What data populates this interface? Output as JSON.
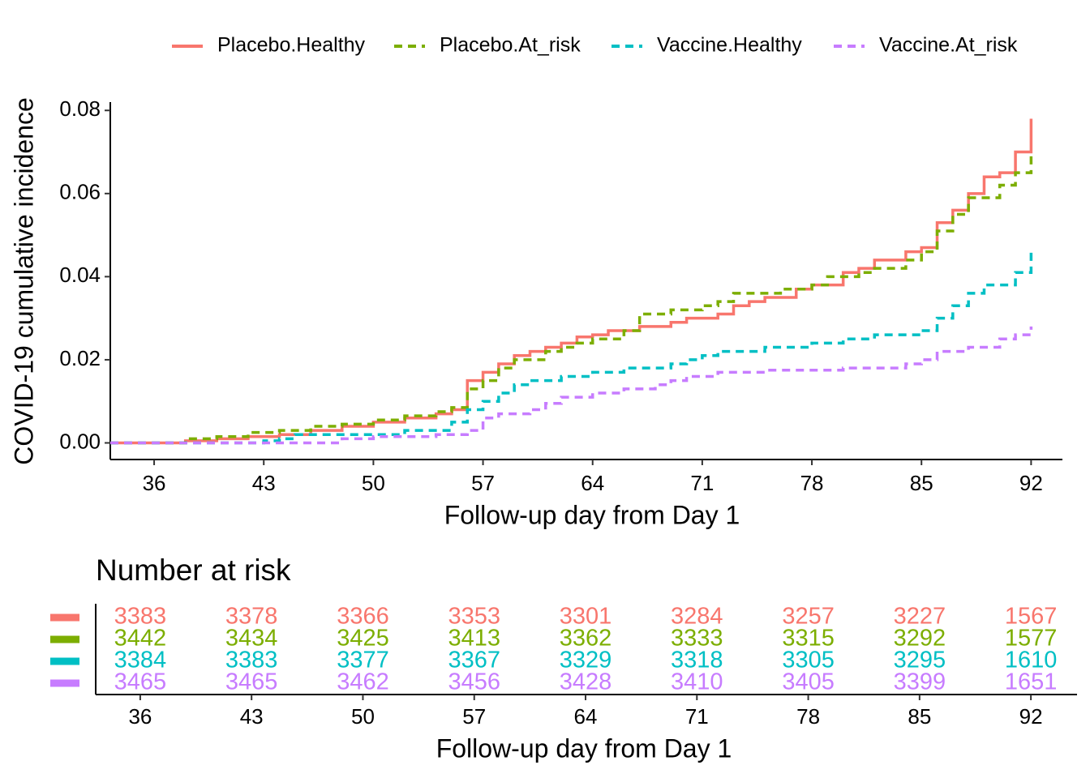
{
  "chart_data": [
    {
      "type": "step",
      "ylabel": "COVID-19 cumulative incidence",
      "xlabel": "Follow-up day from Day 1",
      "legend": "top",
      "xlim": [
        33.2,
        94
      ],
      "ylim": [
        -0.004,
        0.082
      ],
      "xticks": [
        36,
        43,
        50,
        57,
        64,
        71,
        78,
        85,
        92
      ],
      "yticks": [
        {
          "value": 0,
          "label": "0.00"
        },
        {
          "value": 0.02,
          "label": "0.02"
        },
        {
          "value": 0.04,
          "label": "0.04"
        },
        {
          "value": 0.06,
          "label": "0.06"
        },
        {
          "value": 0.08,
          "label": "0.08"
        }
      ],
      "series": [
        {
          "name": "Placebo.Healthy",
          "color": "#F8766D",
          "linestyle": "solid",
          "x": [
            33.2,
            36,
            38,
            40,
            42,
            44,
            46,
            48,
            50,
            52,
            54,
            55,
            56,
            57,
            58,
            59,
            60,
            61,
            62,
            63,
            64,
            65,
            67,
            69,
            70,
            72,
            73,
            74,
            75,
            77,
            78,
            80,
            81,
            82,
            84,
            85,
            86,
            87,
            88,
            89,
            90,
            91,
            92
          ],
          "values": [
            0,
            0,
            0.0005,
            0.001,
            0.0015,
            0.002,
            0.003,
            0.004,
            0.005,
            0.006,
            0.007,
            0.008,
            0.015,
            0.017,
            0.019,
            0.021,
            0.022,
            0.023,
            0.024,
            0.0255,
            0.026,
            0.027,
            0.028,
            0.029,
            0.03,
            0.031,
            0.033,
            0.034,
            0.035,
            0.037,
            0.038,
            0.041,
            0.042,
            0.044,
            0.046,
            0.047,
            0.053,
            0.056,
            0.06,
            0.064,
            0.065,
            0.07,
            0.078
          ]
        },
        {
          "name": "Placebo.At_risk",
          "color": "#7CAE00",
          "linestyle": "dashed",
          "x": [
            33.2,
            36,
            38,
            40,
            42,
            44,
            46,
            48,
            50,
            52,
            54,
            55,
            56,
            57,
            58,
            59,
            61,
            62,
            63,
            64,
            66,
            67,
            69,
            71,
            72,
            73,
            76,
            78,
            79,
            81,
            82,
            84,
            85,
            86,
            87,
            88,
            90,
            91,
            92
          ],
          "values": [
            0,
            0,
            0.001,
            0.0015,
            0.0025,
            0.003,
            0.004,
            0.0045,
            0.0055,
            0.0065,
            0.0075,
            0.0085,
            0.013,
            0.015,
            0.018,
            0.02,
            0.022,
            0.023,
            0.024,
            0.025,
            0.027,
            0.031,
            0.032,
            0.033,
            0.034,
            0.036,
            0.037,
            0.038,
            0.04,
            0.041,
            0.042,
            0.044,
            0.046,
            0.051,
            0.055,
            0.059,
            0.062,
            0.065,
            0.069
          ]
        },
        {
          "name": "Vaccine.Healthy",
          "color": "#00BFC4",
          "linestyle": "dashed",
          "x": [
            33.2,
            40,
            43,
            44,
            45,
            52,
            55,
            56,
            57,
            58,
            59,
            60,
            62,
            64,
            66,
            69,
            70,
            71,
            72,
            75,
            78,
            80,
            82,
            85,
            86,
            87,
            88,
            89,
            91,
            92
          ],
          "values": [
            0,
            0,
            0.0005,
            0.001,
            0.002,
            0.003,
            0.005,
            0.008,
            0.01,
            0.012,
            0.014,
            0.015,
            0.016,
            0.017,
            0.018,
            0.019,
            0.02,
            0.021,
            0.022,
            0.023,
            0.024,
            0.025,
            0.026,
            0.027,
            0.03,
            0.033,
            0.036,
            0.038,
            0.041,
            0.046
          ]
        },
        {
          "name": "Vaccine.At_risk",
          "color": "#C77CFF",
          "linestyle": "dashed",
          "x": [
            33.2,
            45,
            48,
            50,
            54,
            56,
            57,
            58,
            60,
            61,
            62,
            64,
            66,
            68,
            69,
            70,
            72,
            75,
            80,
            84,
            85,
            86,
            88,
            90,
            91,
            92
          ],
          "values": [
            0,
            0,
            0.001,
            0.0015,
            0.002,
            0.003,
            0.006,
            0.007,
            0.008,
            0.0095,
            0.011,
            0.012,
            0.013,
            0.014,
            0.015,
            0.016,
            0.017,
            0.0175,
            0.018,
            0.019,
            0.02,
            0.022,
            0.023,
            0.025,
            0.026,
            0.028
          ]
        }
      ]
    },
    {
      "type": "risk-table",
      "title": "Number at risk",
      "xlabel": "Follow-up day from Day 1",
      "xlim": [
        33.2,
        94.9
      ],
      "xticks": [
        36,
        43,
        50,
        57,
        64,
        71,
        78,
        85,
        92
      ],
      "series": [
        {
          "color": "#F8766D",
          "values": [
            3383,
            3378,
            3366,
            3353,
            3301,
            3284,
            3257,
            3227,
            1567
          ]
        },
        {
          "color": "#7CAE00",
          "values": [
            3442,
            3434,
            3425,
            3413,
            3362,
            3333,
            3315,
            3292,
            1577
          ]
        },
        {
          "color": "#00BFC4",
          "values": [
            3384,
            3383,
            3377,
            3367,
            3329,
            3318,
            3305,
            3295,
            1610
          ]
        },
        {
          "color": "#C77CFF",
          "values": [
            3465,
            3465,
            3462,
            3456,
            3428,
            3410,
            3405,
            3399,
            1651
          ]
        }
      ]
    }
  ]
}
